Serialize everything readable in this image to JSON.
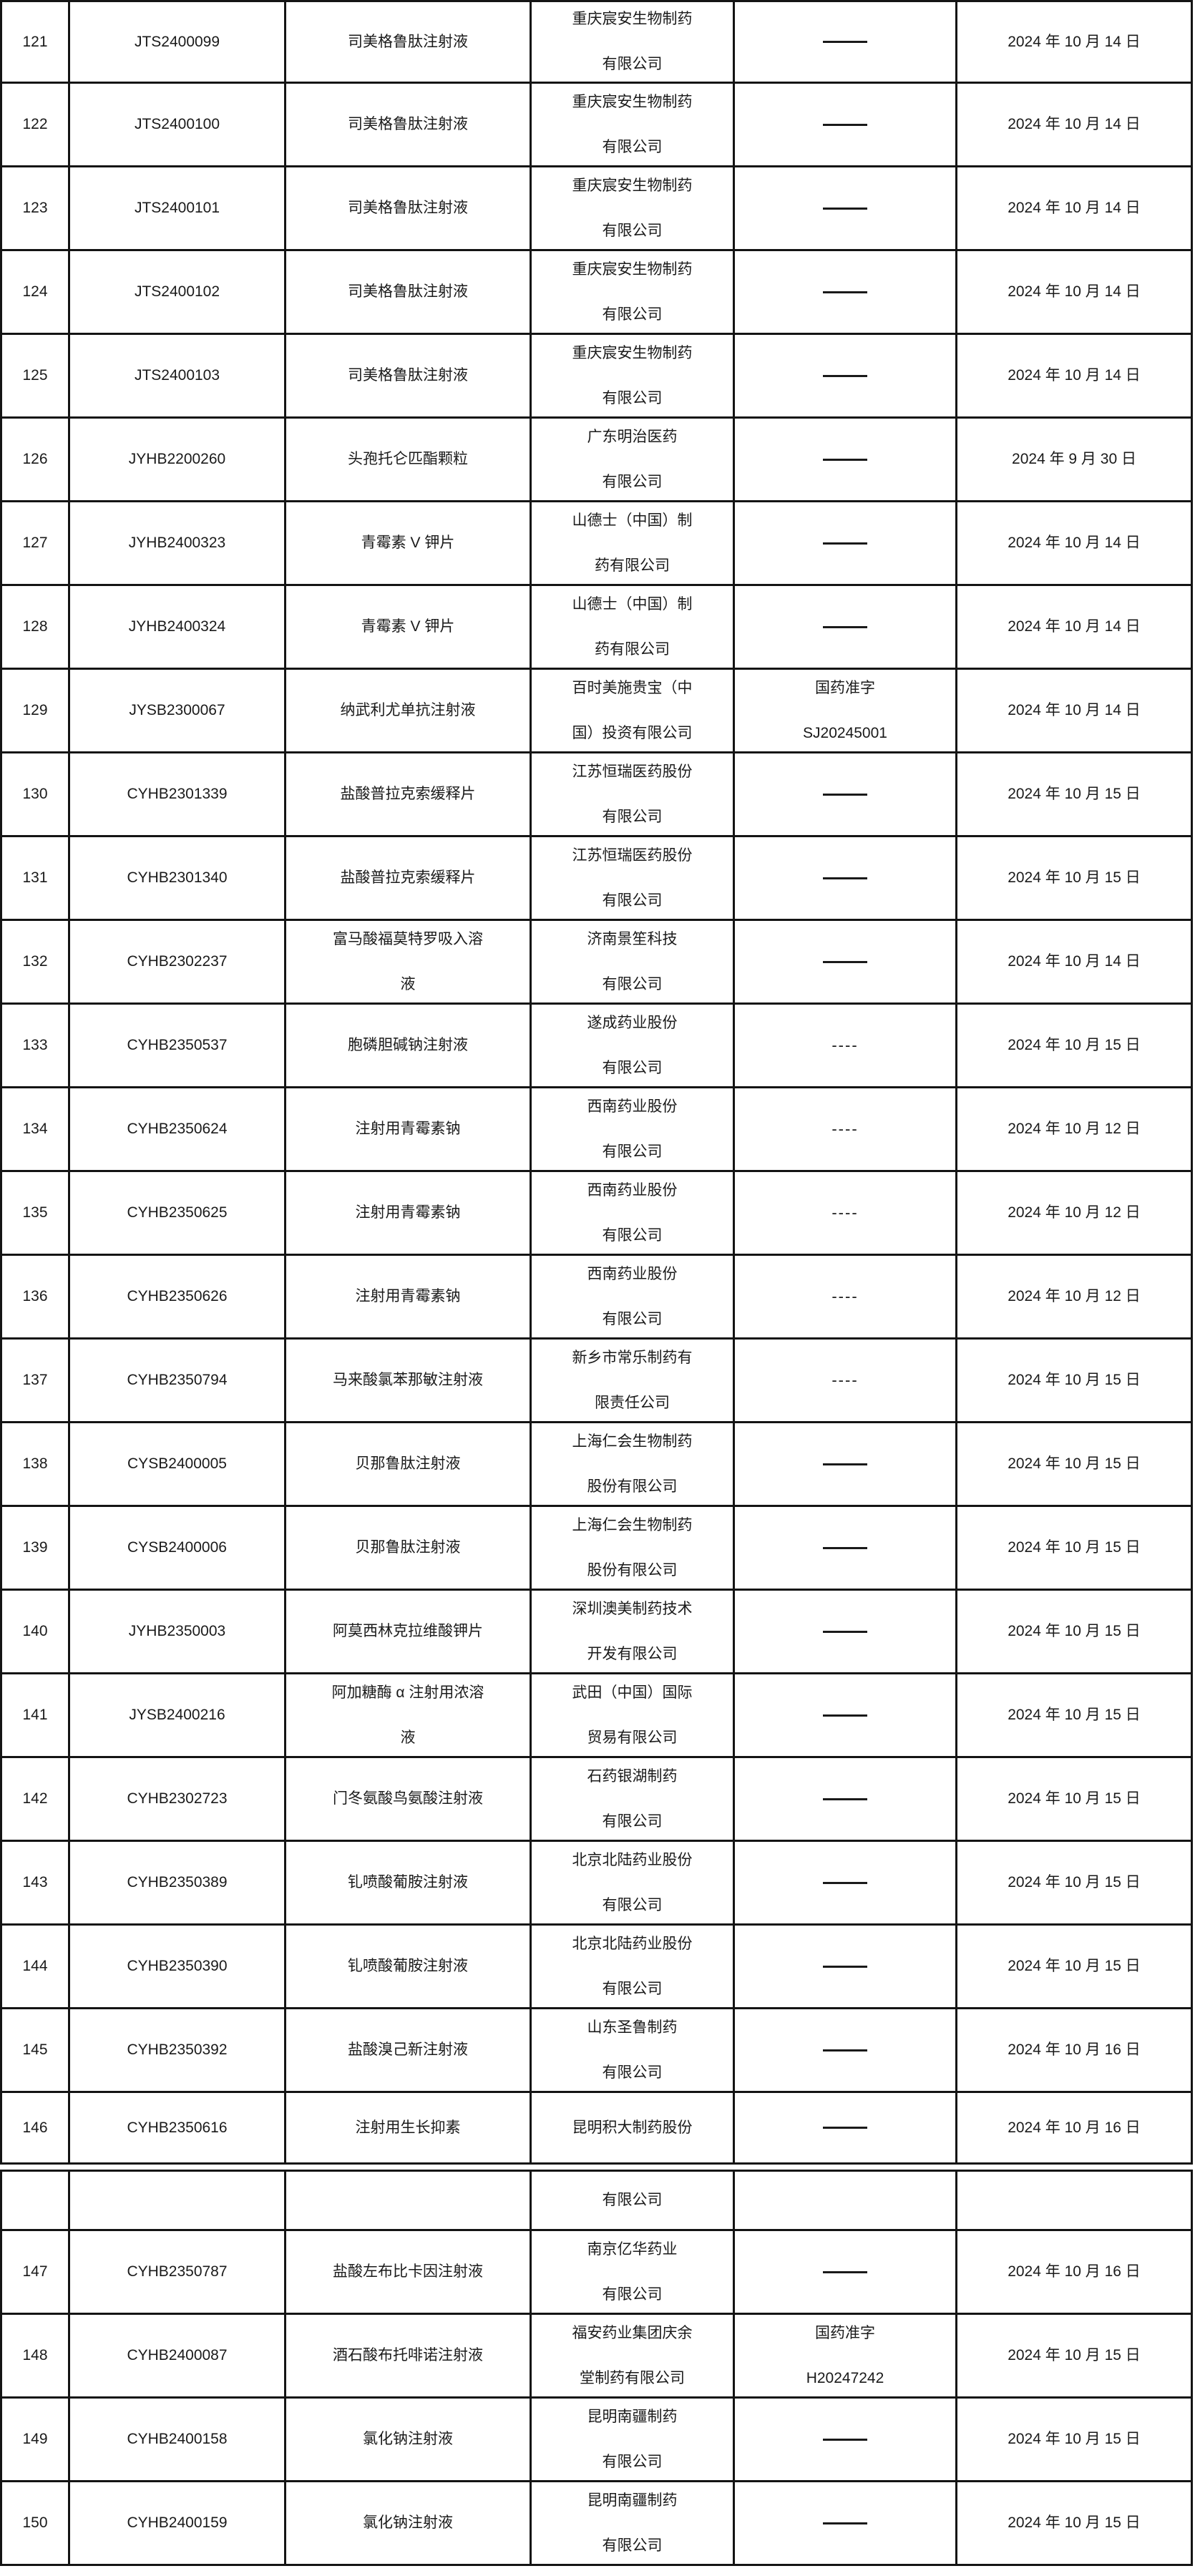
{
  "table": {
    "description_columns": [
      "no",
      "code",
      "name",
      "manufacturer",
      "registration",
      "date"
    ],
    "rows": [
      {
        "no": "121",
        "code": "JTS2400099",
        "name_lines": [
          "司美格鲁肽注射液"
        ],
        "mfr_lines": [
          "重庆宸安生物制药",
          "有限公司"
        ],
        "reg": {
          "type": "line"
        },
        "date": "2024 年 10 月 14 日"
      },
      {
        "no": "122",
        "code": "JTS2400100",
        "name_lines": [
          "司美格鲁肽注射液"
        ],
        "mfr_lines": [
          "重庆宸安生物制药",
          "有限公司"
        ],
        "reg": {
          "type": "line"
        },
        "date": "2024 年 10 月 14 日"
      },
      {
        "no": "123",
        "code": "JTS2400101",
        "name_lines": [
          "司美格鲁肽注射液"
        ],
        "mfr_lines": [
          "重庆宸安生物制药",
          "有限公司"
        ],
        "reg": {
          "type": "line"
        },
        "date": "2024 年 10 月 14 日"
      },
      {
        "no": "124",
        "code": "JTS2400102",
        "name_lines": [
          "司美格鲁肽注射液"
        ],
        "mfr_lines": [
          "重庆宸安生物制药",
          "有限公司"
        ],
        "reg": {
          "type": "line"
        },
        "date": "2024 年 10 月 14 日"
      },
      {
        "no": "125",
        "code": "JTS2400103",
        "name_lines": [
          "司美格鲁肽注射液"
        ],
        "mfr_lines": [
          "重庆宸安生物制药",
          "有限公司"
        ],
        "reg": {
          "type": "line"
        },
        "date": "2024 年 10 月 14 日"
      },
      {
        "no": "126",
        "code": "JYHB2200260",
        "name_lines": [
          "头孢托仑匹酯颗粒"
        ],
        "mfr_lines": [
          "广东明治医药",
          "有限公司"
        ],
        "reg": {
          "type": "line"
        },
        "date": "2024 年 9 月 30 日"
      },
      {
        "no": "127",
        "code": "JYHB2400323",
        "name_lines": [
          "青霉素 V 钾片"
        ],
        "mfr_lines": [
          "山德士（中国）制",
          "药有限公司"
        ],
        "reg": {
          "type": "line"
        },
        "date": "2024 年 10 月 14 日"
      },
      {
        "no": "128",
        "code": "JYHB2400324",
        "name_lines": [
          "青霉素 V 钾片"
        ],
        "mfr_lines": [
          "山德士（中国）制",
          "药有限公司"
        ],
        "reg": {
          "type": "line"
        },
        "date": "2024 年 10 月 14 日"
      },
      {
        "no": "129",
        "code": "JYSB2300067",
        "name_lines": [
          "纳武利尤单抗注射液"
        ],
        "mfr_lines": [
          "百时美施贵宝（中",
          "国）投资有限公司"
        ],
        "reg": {
          "type": "text",
          "lines": [
            "国药准字",
            "SJ20245001"
          ]
        },
        "date": "2024 年 10 月 14 日"
      },
      {
        "no": "130",
        "code": "CYHB2301339",
        "name_lines": [
          "盐酸普拉克索缓释片"
        ],
        "mfr_lines": [
          "江苏恒瑞医药股份",
          "有限公司"
        ],
        "reg": {
          "type": "line"
        },
        "date": "2024 年 10 月 15 日"
      },
      {
        "no": "131",
        "code": "CYHB2301340",
        "name_lines": [
          "盐酸普拉克索缓释片"
        ],
        "mfr_lines": [
          "江苏恒瑞医药股份",
          "有限公司"
        ],
        "reg": {
          "type": "line"
        },
        "date": "2024 年 10 月 15 日"
      },
      {
        "no": "132",
        "code": "CYHB2302237",
        "name_lines": [
          "富马酸福莫特罗吸入溶",
          "液"
        ],
        "mfr_lines": [
          "济南景笙科技",
          "有限公司"
        ],
        "reg": {
          "type": "line"
        },
        "date": "2024 年 10 月 14 日"
      },
      {
        "no": "133",
        "code": "CYHB2350537",
        "name_lines": [
          "胞磷胆碱钠注射液"
        ],
        "mfr_lines": [
          "遂成药业股份",
          "有限公司"
        ],
        "reg": {
          "type": "dashes",
          "text": "----"
        },
        "date": "2024 年 10 月 15 日"
      },
      {
        "no": "134",
        "code": "CYHB2350624",
        "name_lines": [
          "注射用青霉素钠"
        ],
        "mfr_lines": [
          "西南药业股份",
          "有限公司"
        ],
        "reg": {
          "type": "dashes",
          "text": "----"
        },
        "date": "2024 年 10 月 12 日"
      },
      {
        "no": "135",
        "code": "CYHB2350625",
        "name_lines": [
          "注射用青霉素钠"
        ],
        "mfr_lines": [
          "西南药业股份",
          "有限公司"
        ],
        "reg": {
          "type": "dashes",
          "text": "----"
        },
        "date": "2024 年 10 月 12 日"
      },
      {
        "no": "136",
        "code": "CYHB2350626",
        "name_lines": [
          "注射用青霉素钠"
        ],
        "mfr_lines": [
          "西南药业股份",
          "有限公司"
        ],
        "reg": {
          "type": "dashes",
          "text": "----"
        },
        "date": "2024 年 10 月 12 日"
      },
      {
        "no": "137",
        "code": "CYHB2350794",
        "name_lines": [
          "马来酸氯苯那敏注射液"
        ],
        "mfr_lines": [
          "新乡市常乐制药有",
          "限责任公司"
        ],
        "reg": {
          "type": "dashes",
          "text": "----"
        },
        "date": "2024 年 10 月 15 日"
      },
      {
        "no": "138",
        "code": "CYSB2400005",
        "name_lines": [
          "贝那鲁肽注射液"
        ],
        "mfr_lines": [
          "上海仁会生物制药",
          "股份有限公司"
        ],
        "reg": {
          "type": "line"
        },
        "date": "2024 年 10 月 15 日"
      },
      {
        "no": "139",
        "code": "CYSB2400006",
        "name_lines": [
          "贝那鲁肽注射液"
        ],
        "mfr_lines": [
          "上海仁会生物制药",
          "股份有限公司"
        ],
        "reg": {
          "type": "line"
        },
        "date": "2024 年 10 月 15 日"
      },
      {
        "no": "140",
        "code": "JYHB2350003",
        "name_lines": [
          "阿莫西林克拉维酸钾片"
        ],
        "mfr_lines": [
          "深圳澳美制药技术",
          "开发有限公司"
        ],
        "reg": {
          "type": "line"
        },
        "date": "2024 年 10 月 15 日"
      },
      {
        "no": "141",
        "code": "JYSB2400216",
        "name_lines": [
          "阿加糖酶 α 注射用浓溶",
          "液"
        ],
        "mfr_lines": [
          "武田（中国）国际",
          "贸易有限公司"
        ],
        "reg": {
          "type": "line"
        },
        "date": "2024 年 10 月 15 日"
      },
      {
        "no": "142",
        "code": "CYHB2302723",
        "name_lines": [
          "门冬氨酸鸟氨酸注射液"
        ],
        "mfr_lines": [
          "石药银湖制药",
          "有限公司"
        ],
        "reg": {
          "type": "line"
        },
        "date": "2024 年 10 月 15 日"
      },
      {
        "no": "143",
        "code": "CYHB2350389",
        "name_lines": [
          "钆喷酸葡胺注射液"
        ],
        "mfr_lines": [
          "北京北陆药业股份",
          "有限公司"
        ],
        "reg": {
          "type": "line"
        },
        "date": "2024 年 10 月 15 日"
      },
      {
        "no": "144",
        "code": "CYHB2350390",
        "name_lines": [
          "钆喷酸葡胺注射液"
        ],
        "mfr_lines": [
          "北京北陆药业股份",
          "有限公司"
        ],
        "reg": {
          "type": "line"
        },
        "date": "2024 年 10 月 15 日"
      },
      {
        "no": "145",
        "code": "CYHB2350392",
        "name_lines": [
          "盐酸溴己新注射液"
        ],
        "mfr_lines": [
          "山东圣鲁制药",
          "有限公司"
        ],
        "reg": {
          "type": "line"
        },
        "date": "2024 年 10 月 16 日"
      },
      {
        "no": "146",
        "code": "CYHB2350616",
        "name_lines": [
          "注射用生长抑素"
        ],
        "mfr_lines": [
          "昆明积大制药股份"
        ],
        "reg": {
          "type": "line"
        },
        "date": "2024 年 10 月 16 日",
        "row_class": "short"
      },
      {
        "no": "",
        "code": "",
        "name_lines": [],
        "mfr_lines": [
          "有限公司"
        ],
        "reg": {
          "type": "none"
        },
        "date": "",
        "row_class": "overflow-row break"
      },
      {
        "no": "147",
        "code": "CYHB2350787",
        "name_lines": [
          "盐酸左布比卡因注射液"
        ],
        "mfr_lines": [
          "南京亿华药业",
          "有限公司"
        ],
        "reg": {
          "type": "line"
        },
        "date": "2024 年 10 月 16 日"
      },
      {
        "no": "148",
        "code": "CYHB2400087",
        "name_lines": [
          "酒石酸布托啡诺注射液"
        ],
        "mfr_lines": [
          "福安药业集团庆余",
          "堂制药有限公司"
        ],
        "reg": {
          "type": "text",
          "lines": [
            "国药准字",
            "H20247242"
          ]
        },
        "date": "2024 年 10 月 15 日"
      },
      {
        "no": "149",
        "code": "CYHB2400158",
        "name_lines": [
          "氯化钠注射液"
        ],
        "mfr_lines": [
          "昆明南疆制药",
          "有限公司"
        ],
        "reg": {
          "type": "line"
        },
        "date": "2024 年 10 月 15 日"
      },
      {
        "no": "150",
        "code": "CYHB2400159",
        "name_lines": [
          "氯化钠注射液"
        ],
        "mfr_lines": [
          "昆明南疆制药",
          "有限公司"
        ],
        "reg": {
          "type": "line"
        },
        "date": "2024 年 10 月 15 日"
      }
    ]
  }
}
